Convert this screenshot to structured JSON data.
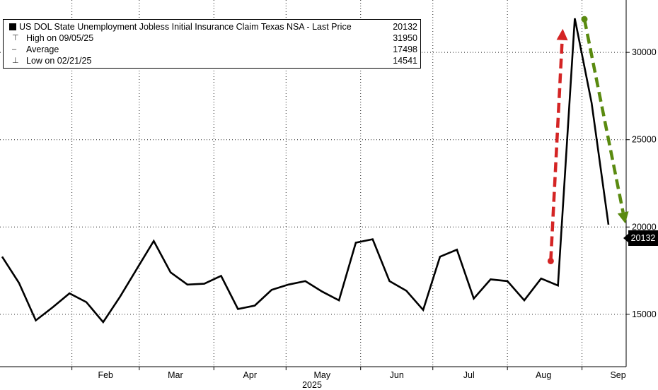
{
  "chart_data": {
    "type": "line",
    "title": "US DOL State Unemployment Jobless Initial Insurance Claim Texas NSA - Last Price",
    "x_label": "2025",
    "x_tick_labels": [
      "Feb",
      "Mar",
      "Apr",
      "May",
      "Jun",
      "Jul",
      "Aug",
      "Sep"
    ],
    "y_tick_labels": [
      "15000",
      "20000",
      "25000",
      "30000"
    ],
    "ylim": [
      12000,
      33000
    ],
    "y_axis_position": "right",
    "grid": true,
    "legend_position": "top-left",
    "legend": {
      "last_price_label": "US DOL State Unemployment Jobless Initial Insurance Claim Texas NSA - Last Price",
      "last_price": "20132",
      "high_label": "High on 09/05/25",
      "high": "31950",
      "average_label": "Average",
      "average": "17498",
      "low_label": "Low on 02/21/25",
      "low": "14541"
    },
    "last_price_badge": "20132",
    "series": [
      {
        "color": "#000000",
        "points": [
          {
            "date": "2025-01-03",
            "y": 18300
          },
          {
            "date": "2025-01-10",
            "y": 16800
          },
          {
            "date": "2025-01-17",
            "y": 14650
          },
          {
            "date": "2025-01-24",
            "y": 15400
          },
          {
            "date": "2025-01-31",
            "y": 16200
          },
          {
            "date": "2025-02-07",
            "y": 15700
          },
          {
            "date": "2025-02-14",
            "y": 14550
          },
          {
            "date": "2025-02-21",
            "y": 16000
          },
          {
            "date": "2025-02-28",
            "y": 17600
          },
          {
            "date": "2025-03-07",
            "y": 19200
          },
          {
            "date": "2025-03-14",
            "y": 17400
          },
          {
            "date": "2025-03-21",
            "y": 16700
          },
          {
            "date": "2025-03-28",
            "y": 16750
          },
          {
            "date": "2025-04-04",
            "y": 17200
          },
          {
            "date": "2025-04-11",
            "y": 15300
          },
          {
            "date": "2025-04-18",
            "y": 15500
          },
          {
            "date": "2025-04-25",
            "y": 16400
          },
          {
            "date": "2025-05-02",
            "y": 16700
          },
          {
            "date": "2025-05-09",
            "y": 16900
          },
          {
            "date": "2025-05-16",
            "y": 16300
          },
          {
            "date": "2025-05-23",
            "y": 15800
          },
          {
            "date": "2025-05-30",
            "y": 19100
          },
          {
            "date": "2025-06-06",
            "y": 19300
          },
          {
            "date": "2025-06-13",
            "y": 16900
          },
          {
            "date": "2025-06-20",
            "y": 16350
          },
          {
            "date": "2025-06-27",
            "y": 15250
          },
          {
            "date": "2025-07-04",
            "y": 18300
          },
          {
            "date": "2025-07-11",
            "y": 18700
          },
          {
            "date": "2025-07-18",
            "y": 15900
          },
          {
            "date": "2025-07-25",
            "y": 17000
          },
          {
            "date": "2025-08-01",
            "y": 16900
          },
          {
            "date": "2025-08-08",
            "y": 15800
          },
          {
            "date": "2025-08-15",
            "y": 17050
          },
          {
            "date": "2025-08-22",
            "y": 16650
          },
          {
            "date": "2025-08-29",
            "y": 31950
          },
          {
            "date": "2025-09-05",
            "y": 27100
          },
          {
            "date": "2025-09-12",
            "y": 20132
          }
        ]
      }
    ],
    "annotations": [
      {
        "type": "dashed-arrow",
        "color": "#d42424",
        "from": {
          "date": "2025-08-19",
          "y": 18050
        },
        "to": {
          "date": "2025-08-24",
          "y": 31350
        }
      },
      {
        "type": "dashed-arrow",
        "color": "#5a8a10",
        "from": {
          "date": "2025-09-02",
          "y": 31900
        },
        "to": {
          "date": "2025-09-19",
          "y": 20200
        }
      }
    ],
    "colors": {
      "line": "#000000",
      "grid": "#222222",
      "up_arrow": "#d42424",
      "down_arrow": "#5a8a10"
    }
  }
}
